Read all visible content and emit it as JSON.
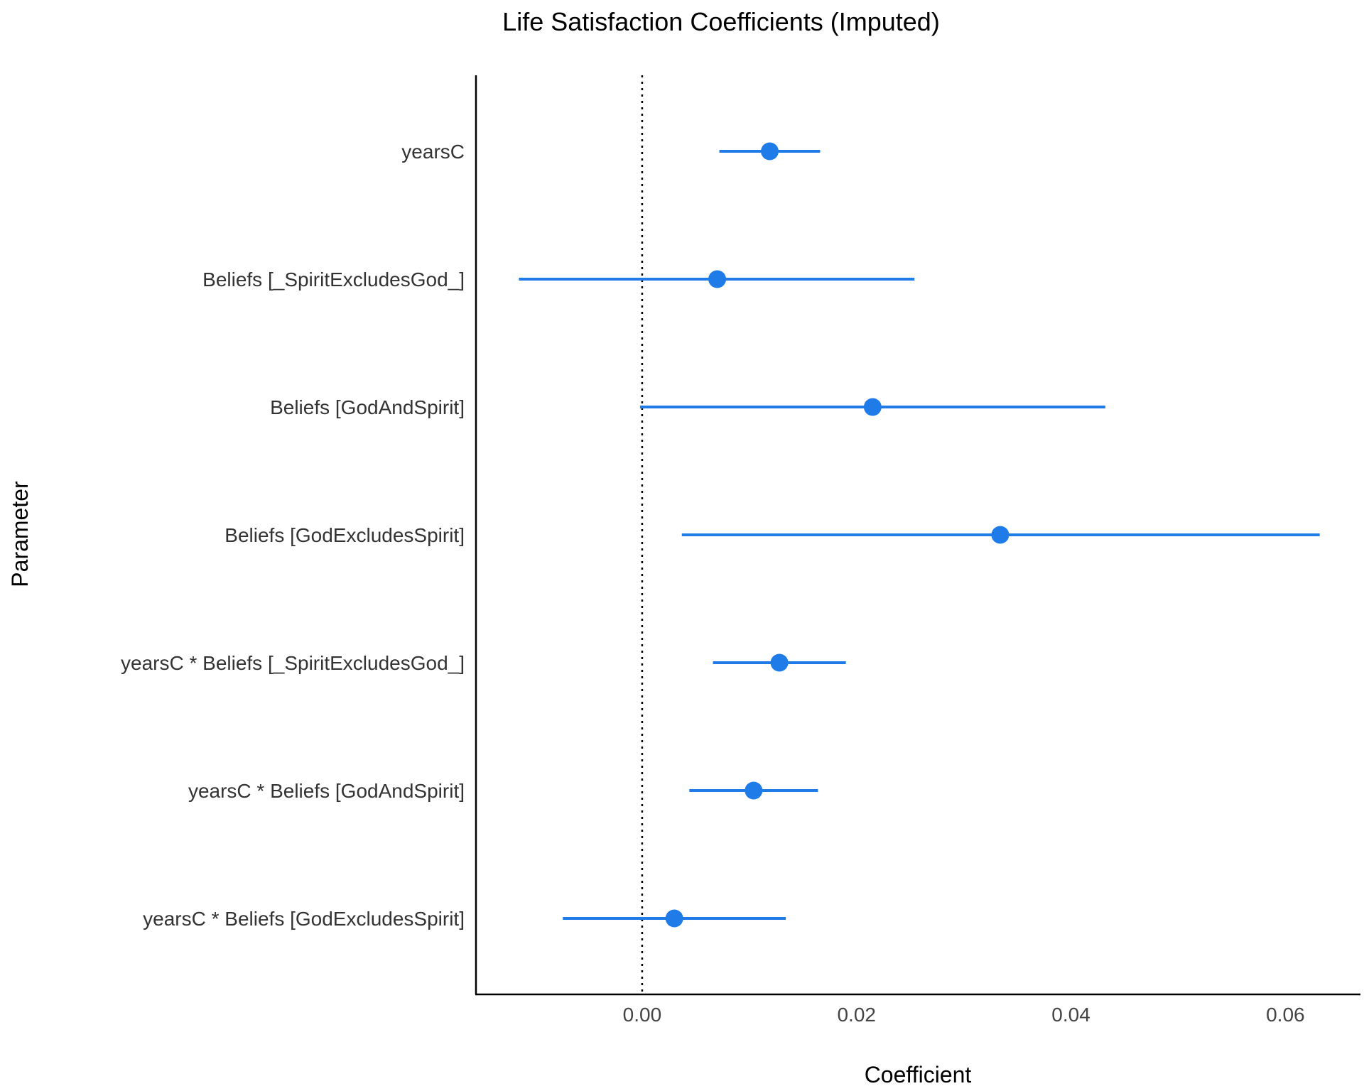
{
  "chart_data": {
    "type": "forest",
    "title": "Life Satisfaction Coefficients (Imputed)",
    "xlabel": "Coefficient",
    "ylabel": "Parameter",
    "xlim": [
      -0.0155,
      0.067
    ],
    "x_ticks": [
      0.0,
      0.02,
      0.04,
      0.06
    ],
    "x_tick_labels": [
      "0.00",
      "0.02",
      "0.04",
      "0.06"
    ],
    "reference_line": 0,
    "grid": false,
    "point_color": "#1e7be8",
    "parameters": [
      {
        "label": "yearsC",
        "estimate": 0.0119,
        "lower": 0.0072,
        "upper": 0.0166
      },
      {
        "label": "Beliefs [_SpiritExcludesGod_]",
        "estimate": 0.007,
        "lower": -0.0115,
        "upper": 0.0254
      },
      {
        "label": "Beliefs [GodAndSpirit]",
        "estimate": 0.0215,
        "lower": -0.0002,
        "upper": 0.0432
      },
      {
        "label": "Beliefs [GodExcludesSpirit]",
        "estimate": 0.0334,
        "lower": 0.0037,
        "upper": 0.0632
      },
      {
        "label": "yearsC * Beliefs [_SpiritExcludesGod_]",
        "estimate": 0.0128,
        "lower": 0.0066,
        "upper": 0.019
      },
      {
        "label": "yearsC * Beliefs [GodAndSpirit]",
        "estimate": 0.0104,
        "lower": 0.0044,
        "upper": 0.0164
      },
      {
        "label": "yearsC * Beliefs [GodExcludesSpirit]",
        "estimate": 0.003,
        "lower": -0.0074,
        "upper": 0.0134
      }
    ]
  }
}
